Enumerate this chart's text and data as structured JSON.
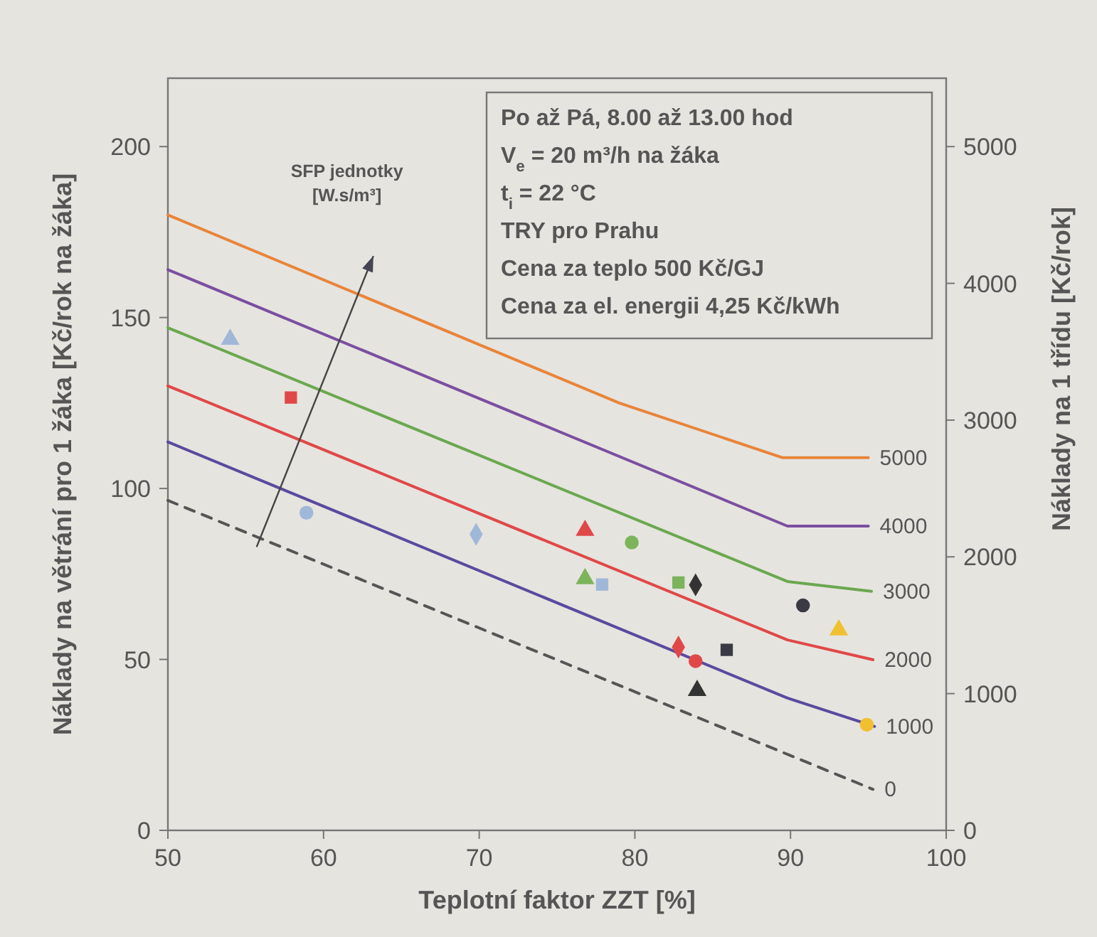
{
  "chart_data": {
    "type": "line",
    "xlabel": "Teplotní faktor ZZT [%]",
    "ylabel": "Náklady na větrání pro 1 žáka [Kč/rok na žáka]",
    "y2label": "Náklady na 1 třídu [Kč/rok]",
    "xlim": [
      50,
      100
    ],
    "xticks": [
      50,
      60,
      70,
      80,
      90,
      100
    ],
    "ylim": [
      0,
      220
    ],
    "yticks": [
      0,
      50,
      100,
      150,
      200
    ],
    "y2lim": [
      0,
      5500
    ],
    "y2ticks": [
      0,
      1000,
      2000,
      3000,
      4000,
      5000
    ],
    "grid": false,
    "legend": false,
    "marker": "none",
    "annotations": [
      "SFP jednotky [W.s/m³]",
      "Po až Pá, 8.00 až 13.00 hod",
      "V$_{e}$ = 20 m³/h na žáka",
      "t$_{i}$ = 22 °C",
      "TRY pro Prahu",
      "Cena za teplo 500 Kč/GJ",
      "Cena za el. energii 4,25 Kč/kWh"
    ],
    "series": [
      {
        "name": "5000",
        "color": "#e8843a",
        "x": [
          50,
          79,
          89.5,
          95
        ],
        "values": [
          180,
          125,
          109,
          109
        ]
      },
      {
        "name": "4000",
        "color": "#7b4fa0",
        "x": [
          50,
          89.8,
          95
        ],
        "values": [
          164,
          89,
          89
        ]
      },
      {
        "name": "3000",
        "color": "#6aa84f",
        "x": [
          50,
          89.8,
          95.2
        ],
        "values": [
          147,
          72.8,
          69.9
        ]
      },
      {
        "name": "2000",
        "color": "#e04848",
        "x": [
          50,
          89.8,
          95.3
        ],
        "values": [
          130,
          55.7,
          49.9
        ]
      },
      {
        "name": "1000",
        "color": "#5a4a9e",
        "x": [
          50,
          89.8,
          95.4
        ],
        "values": [
          113.6,
          38.7,
          30.4
        ]
      },
      {
        "name": "0",
        "color": "#555555",
        "line_style": "dashed",
        "x": [
          50,
          95.3
        ],
        "values": [
          96.5,
          12
        ]
      },
      {
        "type": "scatter",
        "marker": "triangle",
        "color": "#9fb8d8",
        "x": [
          54
        ],
        "values": [
          143.6
        ]
      },
      {
        "type": "scatter",
        "marker": "square",
        "color": "#e04848",
        "x": [
          57.9
        ],
        "values": [
          126.6
        ]
      },
      {
        "type": "scatter",
        "marker": "circle",
        "color": "#9fb8d8",
        "x": [
          58.9
        ],
        "values": [
          92.9
        ]
      },
      {
        "type": "scatter",
        "marker": "diamond",
        "color": "#9fb8d8",
        "x": [
          69.8
        ],
        "values": [
          86.6
        ]
      },
      {
        "type": "scatter",
        "marker": "triangle",
        "color": "#e04848",
        "x": [
          76.8
        ],
        "values": [
          87.7
        ]
      },
      {
        "type": "scatter",
        "marker": "circle",
        "color": "#7cb45c",
        "x": [
          79.8
        ],
        "values": [
          84.2
        ]
      },
      {
        "type": "scatter",
        "marker": "triangle",
        "color": "#7cb45c",
        "x": [
          76.8
        ],
        "values": [
          73.6
        ]
      },
      {
        "type": "scatter",
        "marker": "square",
        "color": "#9fb8d8",
        "x": [
          77.9
        ],
        "values": [
          71.9
        ]
      },
      {
        "type": "scatter",
        "marker": "square",
        "color": "#7cb45c",
        "x": [
          82.8
        ],
        "values": [
          72.5
        ]
      },
      {
        "type": "scatter",
        "marker": "diamond",
        "color": "#333333",
        "x": [
          83.9
        ],
        "values": [
          71.8
        ]
      },
      {
        "type": "scatter",
        "marker": "circle",
        "color": "#3a3a44",
        "x": [
          90.8
        ],
        "values": [
          65.8
        ]
      },
      {
        "type": "scatter",
        "marker": "triangle",
        "color": "#f0c030",
        "x": [
          93.1
        ],
        "values": [
          58.6
        ]
      },
      {
        "type": "scatter",
        "marker": "diamond",
        "color": "#e04848",
        "x": [
          82.8
        ],
        "values": [
          53.6
        ]
      },
      {
        "type": "scatter",
        "marker": "circle",
        "color": "#e04848",
        "x": [
          83.9
        ],
        "values": [
          49.5
        ]
      },
      {
        "type": "scatter",
        "marker": "square",
        "color": "#3a3a44",
        "x": [
          85.9
        ],
        "values": [
          52.8
        ]
      },
      {
        "type": "scatter",
        "marker": "triangle",
        "color": "#333333",
        "x": [
          84
        ],
        "values": [
          40.9
        ]
      },
      {
        "type": "scatter",
        "marker": "circle",
        "color": "#f0c030",
        "x": [
          94.9
        ],
        "values": [
          30.9
        ]
      }
    ]
  }
}
